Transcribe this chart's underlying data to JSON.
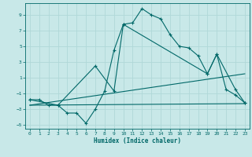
{
  "background_color": "#c8e8e8",
  "grid_color": "#b0d8d8",
  "line_color": "#006868",
  "xlabel": "Humidex (Indice chaleur)",
  "xlim": [
    -0.5,
    23.5
  ],
  "ylim": [
    -5.5,
    10.5
  ],
  "xticks": [
    0,
    1,
    2,
    3,
    4,
    5,
    6,
    7,
    8,
    9,
    10,
    11,
    12,
    13,
    14,
    15,
    16,
    17,
    18,
    19,
    20,
    21,
    22,
    23
  ],
  "yticks": [
    -5,
    -3,
    -1,
    1,
    3,
    5,
    7,
    9
  ],
  "line1_x": [
    0,
    1,
    2,
    3,
    4,
    5,
    6,
    7,
    8,
    9,
    10,
    11,
    12,
    13,
    14,
    15,
    16,
    17,
    18,
    19,
    20,
    21,
    22,
    23
  ],
  "line1_y": [
    -1.8,
    -1.8,
    -2.5,
    -2.5,
    -3.5,
    -3.5,
    -4.8,
    -3.0,
    -0.7,
    4.5,
    7.8,
    8.0,
    9.8,
    9.0,
    8.5,
    6.5,
    5.0,
    4.8,
    3.8,
    1.5,
    4.0,
    -0.5,
    -1.2,
    -2.2
  ],
  "line2_x": [
    0,
    3,
    7,
    9,
    10,
    19,
    20,
    22,
    23
  ],
  "line2_y": [
    -1.8,
    -2.5,
    2.5,
    -0.7,
    7.8,
    1.5,
    4.0,
    -0.5,
    -2.2
  ],
  "line3_x": [
    0,
    23
  ],
  "line3_y": [
    -2.5,
    -2.3
  ],
  "line4_x": [
    0,
    23
  ],
  "line4_y": [
    -2.5,
    1.5
  ]
}
